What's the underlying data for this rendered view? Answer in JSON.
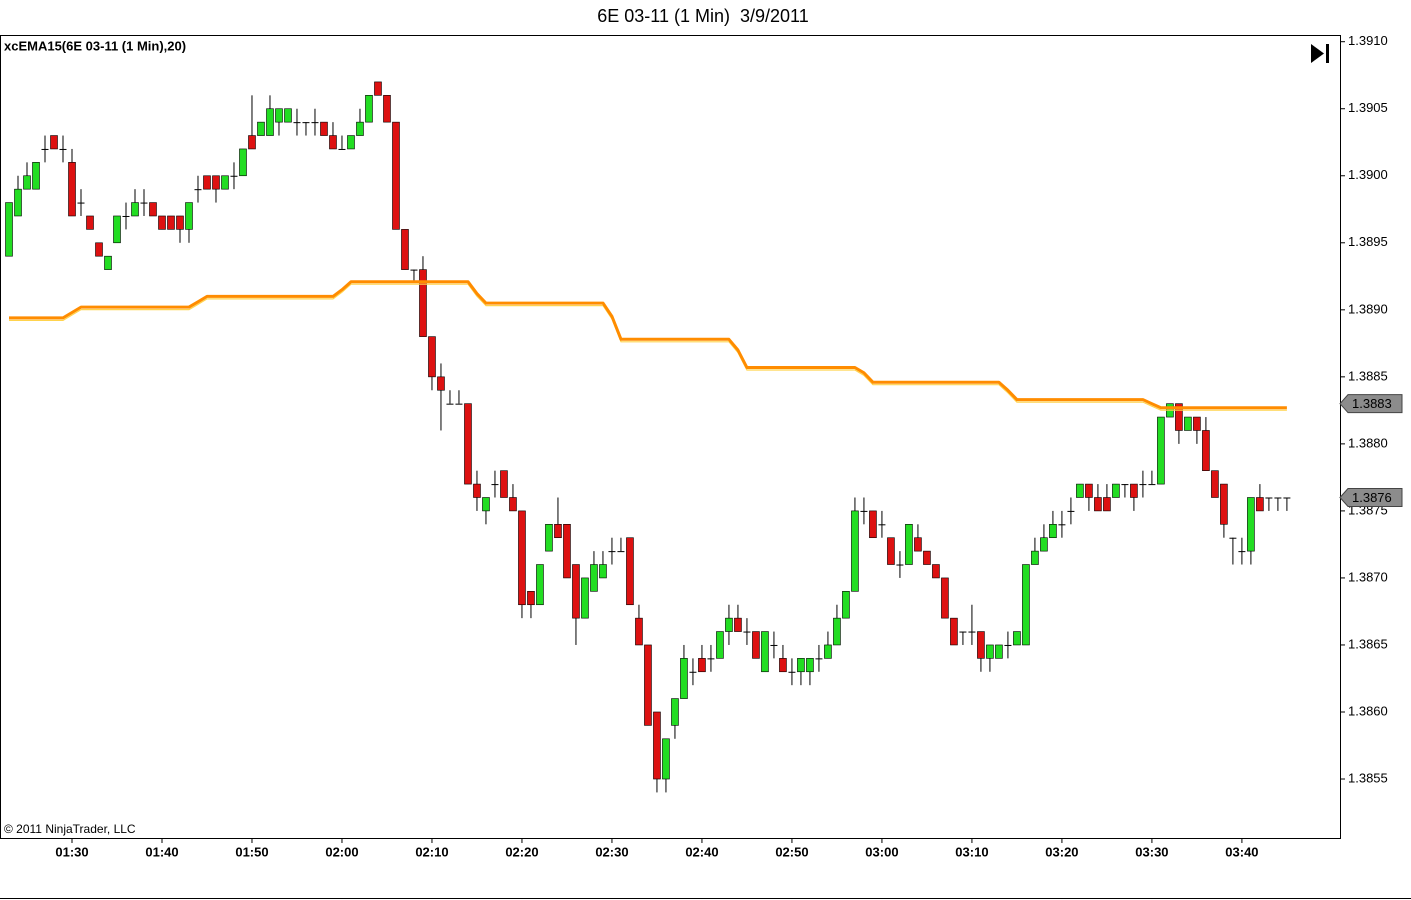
{
  "chart_data": {
    "type": "candlestick",
    "title": "6E 03-11 (1 Min)  3/9/2011",
    "indicator_label": "xcEMA15(6E 03-11 (1 Min),20)",
    "copyright": "© 2011 NinjaTrader, LLC",
    "xlim": [
      82,
      230.9
    ],
    "ylim": [
      1.38506,
      1.39105
    ],
    "xticks": [
      {
        "value": 90,
        "label": "01:30"
      },
      {
        "value": 100,
        "label": "01:40"
      },
      {
        "value": 110,
        "label": "01:50"
      },
      {
        "value": 120,
        "label": "02:00"
      },
      {
        "value": 130,
        "label": "02:10"
      },
      {
        "value": 140,
        "label": "02:20"
      },
      {
        "value": 150,
        "label": "02:30"
      },
      {
        "value": 160,
        "label": "02:40"
      },
      {
        "value": 170,
        "label": "02:50"
      },
      {
        "value": 180,
        "label": "03:00"
      },
      {
        "value": 190,
        "label": "03:10"
      },
      {
        "value": 200,
        "label": "03:20"
      },
      {
        "value": 210,
        "label": "03:30"
      },
      {
        "value": 220,
        "label": "03:40"
      }
    ],
    "yticks": [
      {
        "value": 1.391,
        "label": "1.3910"
      },
      1.3905,
      {
        "value": 1.39,
        "label": "1.3900"
      },
      1.3895,
      {
        "value": 1.389,
        "label": "1.3890"
      },
      1.3885,
      {
        "value": 1.388,
        "label": "1.3880"
      },
      1.3875,
      {
        "value": 1.387,
        "label": "1.3870"
      },
      1.3865,
      {
        "value": 1.386,
        "label": "1.3860"
      },
      1.3855
    ],
    "price_markers": [
      1.3883,
      1.3876
    ],
    "x": [
      83,
      84,
      85,
      86,
      87,
      88,
      89,
      90,
      91,
      92,
      93,
      94,
      95,
      96,
      97,
      98,
      99,
      100,
      101,
      102,
      103,
      104,
      105,
      106,
      107,
      108,
      109,
      110,
      111,
      112,
      113,
      114,
      115,
      116,
      117,
      118,
      119,
      120,
      121,
      122,
      123,
      124,
      125,
      126,
      127,
      128,
      129,
      130,
      131,
      132,
      133,
      134,
      135,
      136,
      137,
      138,
      139,
      140,
      141,
      142,
      143,
      144,
      145,
      146,
      147,
      148,
      149,
      150,
      151,
      152,
      153,
      154,
      155,
      156,
      157,
      158,
      159,
      160,
      161,
      162,
      163,
      164,
      165,
      166,
      167,
      168,
      169,
      170,
      171,
      172,
      173,
      174,
      175,
      176,
      177,
      178,
      179,
      180,
      181,
      182,
      183,
      184,
      185,
      186,
      187,
      188,
      189,
      190,
      191,
      192,
      193,
      194,
      195,
      196,
      197,
      198,
      199,
      200,
      201,
      202,
      203,
      204,
      205,
      206,
      207,
      208,
      209,
      210,
      211,
      212,
      213,
      214,
      215,
      216,
      217,
      218,
      219,
      220,
      221,
      222,
      223,
      224,
      225
    ],
    "candles": {
      "up_color": "#22dd22",
      "down_color": "#dd1111",
      "open": [
        1.3894,
        1.3897,
        1.3899,
        1.3899,
        1.3902,
        1.3903,
        1.3902,
        1.3901,
        1.3898,
        1.3897,
        1.3895,
        1.3893,
        1.3895,
        1.3897,
        1.3897,
        1.3898,
        1.3898,
        1.3897,
        1.3897,
        1.3897,
        1.3896,
        1.3899,
        1.39,
        1.39,
        1.3899,
        1.39,
        1.39,
        1.3903,
        1.3903,
        1.3903,
        1.3904,
        1.3904,
        1.3904,
        1.3904,
        1.3904,
        1.3904,
        1.3903,
        1.3902,
        1.3902,
        1.3903,
        1.3904,
        1.3907,
        1.3906,
        1.3904,
        1.3896,
        1.3893,
        1.3893,
        1.3888,
        1.3885,
        1.3883,
        1.3883,
        1.3883,
        1.3877,
        1.3875,
        1.3877,
        1.3878,
        1.3876,
        1.3875,
        1.3869,
        1.3868,
        1.3872,
        1.3874,
        1.3874,
        1.3871,
        1.3867,
        1.3869,
        1.387,
        1.3872,
        1.3872,
        1.3873,
        1.3867,
        1.3865,
        1.386,
        1.3855,
        1.3859,
        1.3861,
        1.3863,
        1.3864,
        1.3864,
        1.3864,
        1.3866,
        1.3867,
        1.3866,
        1.3866,
        1.3863,
        1.3865,
        1.3864,
        1.3863,
        1.3863,
        1.3863,
        1.3864,
        1.3864,
        1.3865,
        1.3867,
        1.3869,
        1.3875,
        1.3875,
        1.3874,
        1.3873,
        1.3871,
        1.3871,
        1.3873,
        1.3872,
        1.3871,
        1.387,
        1.3867,
        1.3866,
        1.3866,
        1.3866,
        1.3864,
        1.3864,
        1.3865,
        1.3865,
        1.3865,
        1.3871,
        1.3872,
        1.3873,
        1.3874,
        1.3875,
        1.3876,
        1.3877,
        1.3876,
        1.3876,
        1.3876,
        1.3877,
        1.3877,
        1.3877,
        1.3877,
        1.3877,
        1.3882,
        1.3883,
        1.3881,
        1.3882,
        1.3881,
        1.3878,
        1.3877,
        1.3873,
        1.3872,
        1.3872,
        1.3876,
        1.3876,
        1.3876,
        1.3876
      ],
      "high": [
        1.3898,
        1.39,
        1.3901,
        1.3901,
        1.3903,
        1.3903,
        1.3903,
        1.3902,
        1.3899,
        1.3897,
        1.3895,
        1.3894,
        1.3897,
        1.3898,
        1.3899,
        1.3899,
        1.3898,
        1.3897,
        1.3897,
        1.3897,
        1.3898,
        1.39,
        1.39,
        1.39,
        1.39,
        1.3901,
        1.3902,
        1.3906,
        1.3904,
        1.3906,
        1.3905,
        1.3905,
        1.3905,
        1.3904,
        1.3905,
        1.3904,
        1.3904,
        1.3903,
        1.3903,
        1.3905,
        1.3906,
        1.3907,
        1.3906,
        1.3904,
        1.3896,
        1.3893,
        1.3894,
        1.3888,
        1.3886,
        1.3884,
        1.3884,
        1.3883,
        1.3878,
        1.3876,
        1.3878,
        1.3878,
        1.3877,
        1.3875,
        1.3869,
        1.3871,
        1.3874,
        1.3876,
        1.3874,
        1.3871,
        1.387,
        1.3872,
        1.3872,
        1.3873,
        1.3873,
        1.3873,
        1.3868,
        1.3865,
        1.386,
        1.3858,
        1.3861,
        1.3865,
        1.3864,
        1.3865,
        1.3865,
        1.3866,
        1.3868,
        1.3868,
        1.3867,
        1.3866,
        1.3866,
        1.3866,
        1.3865,
        1.3864,
        1.3864,
        1.3864,
        1.3865,
        1.3866,
        1.3868,
        1.3869,
        1.3876,
        1.3876,
        1.3875,
        1.3875,
        1.3873,
        1.3872,
        1.3874,
        1.3874,
        1.3872,
        1.3871,
        1.387,
        1.3867,
        1.3866,
        1.3868,
        1.3866,
        1.3865,
        1.3865,
        1.3866,
        1.3866,
        1.3871,
        1.3873,
        1.3874,
        1.3875,
        1.3875,
        1.3876,
        1.3877,
        1.3877,
        1.3877,
        1.3877,
        1.3877,
        1.3877,
        1.3877,
        1.3878,
        1.3878,
        1.3882,
        1.3883,
        1.3883,
        1.3882,
        1.3882,
        1.3882,
        1.3878,
        1.3877,
        1.3873,
        1.3873,
        1.3876,
        1.3877,
        1.3876,
        1.3876,
        1.3876
      ],
      "low": [
        1.3894,
        1.3897,
        1.3899,
        1.3899,
        1.3901,
        1.3902,
        1.3901,
        1.3897,
        1.3897,
        1.3896,
        1.3894,
        1.3893,
        1.3895,
        1.3896,
        1.3897,
        1.3897,
        1.3897,
        1.3896,
        1.3896,
        1.3895,
        1.3895,
        1.3898,
        1.3899,
        1.3898,
        1.3899,
        1.3899,
        1.39,
        1.3902,
        1.3903,
        1.3903,
        1.3903,
        1.3904,
        1.3903,
        1.3903,
        1.3903,
        1.3903,
        1.3902,
        1.3902,
        1.3902,
        1.3903,
        1.3904,
        1.3906,
        1.3904,
        1.3896,
        1.3893,
        1.3892,
        1.3888,
        1.3884,
        1.3881,
        1.3883,
        1.3883,
        1.3877,
        1.3875,
        1.3874,
        1.3876,
        1.3876,
        1.3875,
        1.3867,
        1.3867,
        1.3868,
        1.3872,
        1.3873,
        1.387,
        1.3865,
        1.3867,
        1.3869,
        1.387,
        1.3871,
        1.3872,
        1.3868,
        1.3865,
        1.3859,
        1.3854,
        1.3854,
        1.3858,
        1.3861,
        1.3862,
        1.3863,
        1.3863,
        1.3864,
        1.3865,
        1.3866,
        1.3865,
        1.3864,
        1.3863,
        1.3864,
        1.3863,
        1.3862,
        1.3862,
        1.3862,
        1.3863,
        1.3864,
        1.3865,
        1.3867,
        1.3869,
        1.3874,
        1.3873,
        1.3873,
        1.3871,
        1.387,
        1.3871,
        1.3872,
        1.3871,
        1.387,
        1.3867,
        1.3865,
        1.3865,
        1.3865,
        1.3863,
        1.3863,
        1.3864,
        1.3864,
        1.3865,
        1.3865,
        1.3871,
        1.3872,
        1.3873,
        1.3873,
        1.3874,
        1.3876,
        1.3875,
        1.3875,
        1.3875,
        1.3876,
        1.3876,
        1.3875,
        1.3876,
        1.3877,
        1.3877,
        1.3882,
        1.388,
        1.3881,
        1.388,
        1.3878,
        1.3876,
        1.3873,
        1.3871,
        1.3871,
        1.3871,
        1.3875,
        1.3875,
        1.3875,
        1.3875
      ],
      "close": [
        1.3898,
        1.3899,
        1.39,
        1.3901,
        1.3902,
        1.3902,
        1.3902,
        1.3897,
        1.3898,
        1.3896,
        1.3894,
        1.3894,
        1.3897,
        1.3897,
        1.3898,
        1.3898,
        1.3897,
        1.3896,
        1.3896,
        1.3896,
        1.3898,
        1.3899,
        1.3899,
        1.3899,
        1.39,
        1.39,
        1.3902,
        1.3902,
        1.3904,
        1.3905,
        1.3905,
        1.3905,
        1.3904,
        1.3904,
        1.3904,
        1.3903,
        1.3902,
        1.3902,
        1.3903,
        1.3904,
        1.3906,
        1.3906,
        1.3904,
        1.3896,
        1.3893,
        1.3893,
        1.3888,
        1.3885,
        1.3884,
        1.3883,
        1.3883,
        1.3877,
        1.3876,
        1.3876,
        1.3877,
        1.3876,
        1.3875,
        1.3868,
        1.3868,
        1.3871,
        1.3874,
        1.3873,
        1.387,
        1.3867,
        1.387,
        1.3871,
        1.3871,
        1.3872,
        1.3872,
        1.3868,
        1.3865,
        1.3859,
        1.3855,
        1.3858,
        1.3861,
        1.3864,
        1.3863,
        1.3863,
        1.3864,
        1.3866,
        1.3867,
        1.3866,
        1.3866,
        1.3864,
        1.3866,
        1.3865,
        1.3863,
        1.3863,
        1.3864,
        1.3864,
        1.3864,
        1.3865,
        1.3867,
        1.3869,
        1.3875,
        1.3875,
        1.3873,
        1.3874,
        1.3871,
        1.3871,
        1.3874,
        1.3872,
        1.3871,
        1.387,
        1.3867,
        1.3865,
        1.3866,
        1.3866,
        1.3864,
        1.3865,
        1.3865,
        1.3865,
        1.3866,
        1.3871,
        1.3872,
        1.3873,
        1.3874,
        1.3874,
        1.3875,
        1.3877,
        1.3876,
        1.3875,
        1.3875,
        1.3877,
        1.3877,
        1.3876,
        1.3877,
        1.3877,
        1.3882,
        1.3883,
        1.3881,
        1.3882,
        1.3881,
        1.3878,
        1.3876,
        1.3874,
        1.3873,
        1.3872,
        1.3876,
        1.3875,
        1.3876,
        1.3876,
        1.3876
      ]
    },
    "ema": {
      "color": "#ff8c00",
      "highlight_color": "#ffd34d",
      "values": [
        1.38894,
        1.38894,
        1.38894,
        1.38894,
        1.38894,
        1.38894,
        1.38894,
        1.38898,
        1.38902,
        1.38902,
        1.38902,
        1.38902,
        1.38902,
        1.38902,
        1.38902,
        1.38902,
        1.38902,
        1.38902,
        1.38902,
        1.38902,
        1.38902,
        1.38906,
        1.3891,
        1.3891,
        1.3891,
        1.3891,
        1.3891,
        1.3891,
        1.3891,
        1.3891,
        1.3891,
        1.3891,
        1.3891,
        1.3891,
        1.3891,
        1.3891,
        1.3891,
        1.38915,
        1.38921,
        1.38921,
        1.38921,
        1.38921,
        1.38921,
        1.38921,
        1.38921,
        1.38921,
        1.38921,
        1.38921,
        1.38921,
        1.38921,
        1.38921,
        1.38921,
        1.38912,
        1.38905,
        1.38905,
        1.38905,
        1.38905,
        1.38905,
        1.38905,
        1.38905,
        1.38905,
        1.38905,
        1.38905,
        1.38905,
        1.38905,
        1.38905,
        1.38905,
        1.38895,
        1.38878,
        1.38878,
        1.38878,
        1.38878,
        1.38878,
        1.38878,
        1.38878,
        1.38878,
        1.38878,
        1.38878,
        1.38878,
        1.38878,
        1.38878,
        1.3887,
        1.38857,
        1.38857,
        1.38857,
        1.38857,
        1.38857,
        1.38857,
        1.38857,
        1.38857,
        1.38857,
        1.38857,
        1.38857,
        1.38857,
        1.38857,
        1.38853,
        1.38846,
        1.38846,
        1.38846,
        1.38846,
        1.38846,
        1.38846,
        1.38846,
        1.38846,
        1.38846,
        1.38846,
        1.38846,
        1.38846,
        1.38846,
        1.38846,
        1.38846,
        1.3884,
        1.38833,
        1.38833,
        1.38833,
        1.38833,
        1.38833,
        1.38833,
        1.38833,
        1.38833,
        1.38833,
        1.38833,
        1.38833,
        1.38833,
        1.38833,
        1.38833,
        1.38833,
        1.3883,
        1.38827,
        1.38827,
        1.38827,
        1.38827,
        1.38827,
        1.38827,
        1.38827,
        1.38827,
        1.38827,
        1.38827,
        1.38827,
        1.38827,
        1.38827,
        1.38827,
        1.38827
      ]
    }
  }
}
